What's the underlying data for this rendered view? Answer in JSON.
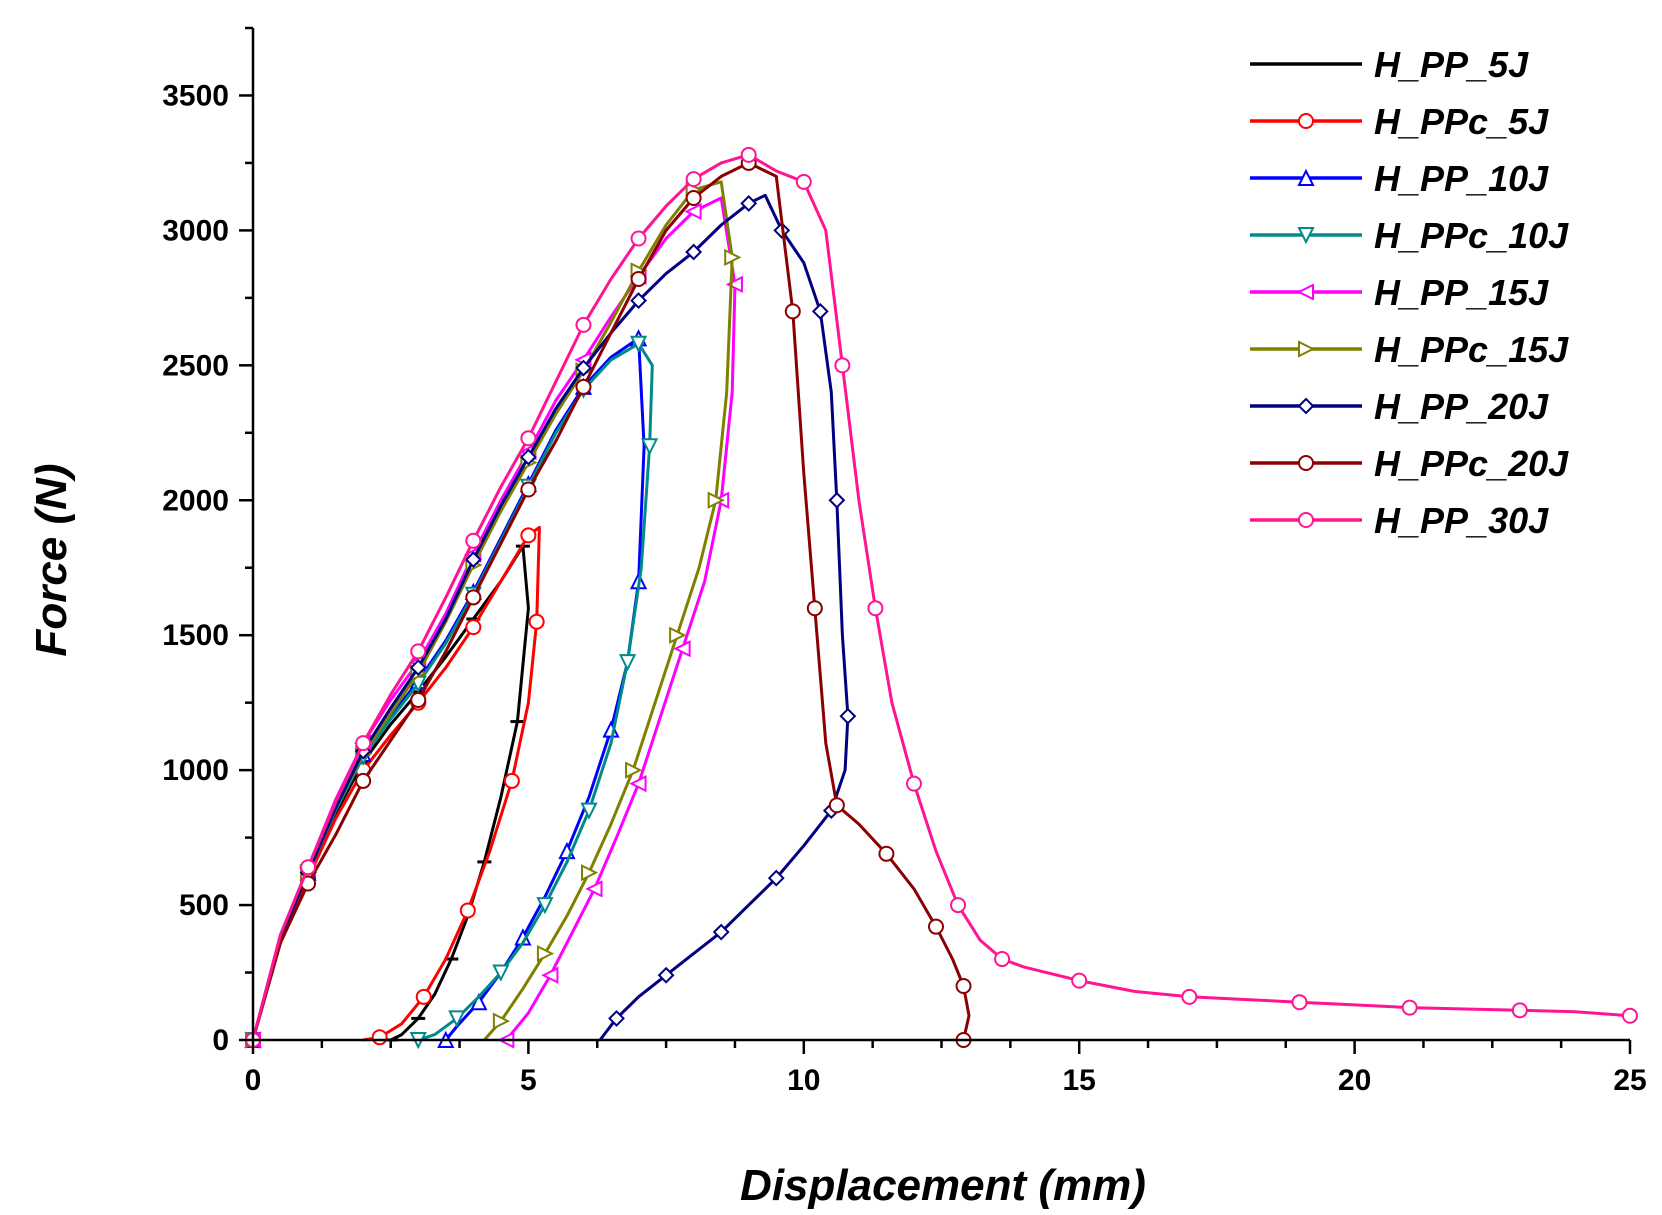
{
  "chart_data": {
    "type": "line",
    "title": "",
    "xlabel": "Displacement (mm)",
    "ylabel": "Force (N)",
    "xlim": [
      0,
      25
    ],
    "ylim": [
      0,
      3750
    ],
    "xticks": [
      0,
      5,
      10,
      15,
      20,
      25
    ],
    "yticks": [
      0,
      500,
      1000,
      1500,
      2000,
      2500,
      3000,
      3500
    ],
    "xtick_labels": [
      "0",
      "5",
      "10",
      "15",
      "20",
      "25"
    ],
    "ytick_labels": [
      "0",
      "500",
      "1000",
      "1500",
      "2000",
      "2500",
      "3000",
      "3500"
    ],
    "grid": false,
    "legend_position": "top-right",
    "series": [
      {
        "name": "H_PP_5J",
        "color": "#000000",
        "marker": "dash",
        "x": [
          0,
          0.5,
          1.0,
          1.5,
          2.0,
          2.5,
          3.0,
          3.5,
          4.0,
          4.5,
          4.9,
          5.0,
          4.8,
          4.5,
          4.2,
          3.9,
          3.6,
          3.3,
          3.0,
          2.7,
          2.5
        ],
        "y": [
          0,
          380,
          610,
          840,
          1030,
          1170,
          1290,
          1420,
          1560,
          1700,
          1830,
          1600,
          1180,
          900,
          660,
          460,
          300,
          170,
          80,
          20,
          0
        ]
      },
      {
        "name": "H_PPc_5J",
        "color": "#ff0000",
        "marker": "circle",
        "x": [
          0,
          0.5,
          1.0,
          1.5,
          2.0,
          2.5,
          3.0,
          3.5,
          4.0,
          4.5,
          5.0,
          5.2,
          5.15,
          5.0,
          4.7,
          4.3,
          3.9,
          3.5,
          3.1,
          2.7,
          2.3,
          2.0
        ],
        "y": [
          0,
          380,
          600,
          820,
          1000,
          1130,
          1250,
          1380,
          1530,
          1700,
          1870,
          1900,
          1550,
          1250,
          960,
          700,
          480,
          300,
          160,
          60,
          10,
          0
        ]
      },
      {
        "name": "H_PP_10J",
        "color": "#0000ff",
        "marker": "triangle-up",
        "x": [
          0,
          0.5,
          1.0,
          1.5,
          2.0,
          2.5,
          3.0,
          3.5,
          4.0,
          4.5,
          5.0,
          5.5,
          6.0,
          6.5,
          7.0,
          7.1,
          7.0,
          6.8,
          6.5,
          6.1,
          5.7,
          5.3,
          4.9,
          4.5,
          4.1,
          3.7,
          3.5
        ],
        "y": [
          0,
          380,
          620,
          860,
          1060,
          1200,
          1330,
          1480,
          1660,
          1860,
          2060,
          2260,
          2420,
          2530,
          2600,
          2200,
          1700,
          1400,
          1150,
          900,
          700,
          530,
          380,
          250,
          140,
          50,
          0
        ]
      },
      {
        "name": "H_PPc_10J",
        "color": "#008b8b",
        "marker": "triangle-down",
        "x": [
          0,
          0.5,
          1.0,
          1.5,
          2.0,
          2.5,
          3.0,
          3.5,
          4.0,
          4.5,
          5.0,
          5.5,
          6.0,
          6.5,
          7.0,
          7.25,
          7.2,
          7.05,
          6.8,
          6.5,
          6.1,
          5.7,
          5.3,
          4.9,
          4.5,
          4.1,
          3.7,
          3.3,
          3.0
        ],
        "y": [
          0,
          380,
          620,
          850,
          1050,
          1190,
          1320,
          1470,
          1650,
          1850,
          2050,
          2250,
          2410,
          2520,
          2580,
          2500,
          2200,
          1750,
          1400,
          1100,
          850,
          660,
          500,
          360,
          250,
          160,
          80,
          20,
          0
        ]
      },
      {
        "name": "H_PP_15J",
        "color": "#ff00ff",
        "marker": "triangle-left",
        "x": [
          0,
          0.5,
          1.0,
          1.5,
          2.0,
          2.5,
          3.0,
          3.5,
          4.0,
          4.5,
          5.0,
          5.5,
          6.0,
          6.5,
          7.0,
          7.5,
          8.0,
          8.5,
          8.75,
          8.7,
          8.5,
          8.2,
          7.8,
          7.4,
          7.0,
          6.6,
          6.2,
          5.8,
          5.4,
          5.0,
          4.6
        ],
        "y": [
          0,
          390,
          640,
          890,
          1100,
          1260,
          1400,
          1580,
          1800,
          2000,
          2180,
          2370,
          2520,
          2680,
          2830,
          2970,
          3070,
          3120,
          2800,
          2400,
          2000,
          1700,
          1450,
          1200,
          950,
          750,
          560,
          400,
          240,
          100,
          0
        ]
      },
      {
        "name": "H_PPc_15J",
        "color": "#808000",
        "marker": "triangle-right",
        "x": [
          0,
          0.5,
          1.0,
          1.5,
          2.0,
          2.5,
          3.0,
          3.5,
          4.0,
          4.5,
          5.0,
          5.5,
          6.0,
          6.5,
          7.0,
          7.5,
          8.0,
          8.5,
          8.7,
          8.6,
          8.4,
          8.1,
          7.7,
          7.3,
          6.9,
          6.5,
          6.1,
          5.7,
          5.3,
          4.9,
          4.5,
          4.2
        ],
        "y": [
          0,
          380,
          620,
          860,
          1060,
          1210,
          1360,
          1550,
          1760,
          1960,
          2140,
          2320,
          2480,
          2660,
          2850,
          3020,
          3150,
          3180,
          2900,
          2400,
          2000,
          1750,
          1500,
          1250,
          1000,
          800,
          620,
          460,
          320,
          190,
          70,
          0
        ]
      },
      {
        "name": "H_PP_20J",
        "color": "#000080",
        "marker": "diamond",
        "x": [
          0,
          0.5,
          1.0,
          1.5,
          2.0,
          2.5,
          3.0,
          3.5,
          4.0,
          4.5,
          5.0,
          5.5,
          6.0,
          6.5,
          7.0,
          7.5,
          8.0,
          8.5,
          9.0,
          9.3,
          9.6,
          10.0,
          10.3,
          10.5,
          10.6,
          10.7,
          10.8,
          10.75,
          10.5,
          10.0,
          9.5,
          9.0,
          8.5,
          8.0,
          7.5,
          7.0,
          6.6,
          6.3
        ],
        "y": [
          0,
          380,
          620,
          860,
          1070,
          1230,
          1380,
          1560,
          1780,
          1980,
          2160,
          2340,
          2490,
          2620,
          2740,
          2840,
          2920,
          3020,
          3100,
          3130,
          3000,
          2880,
          2700,
          2400,
          2000,
          1500,
          1200,
          1000,
          850,
          720,
          600,
          500,
          400,
          320,
          240,
          160,
          80,
          0
        ]
      },
      {
        "name": "H_PPc_20J",
        "color": "#8b0000",
        "marker": "circle",
        "x": [
          0,
          0.5,
          1.0,
          1.5,
          2.0,
          2.5,
          3.0,
          3.5,
          4.0,
          4.5,
          5.0,
          5.5,
          6.0,
          6.5,
          7.0,
          7.5,
          8.0,
          8.5,
          9.0,
          9.5,
          9.8,
          10.0,
          10.2,
          10.4,
          10.6,
          11.0,
          11.5,
          12.0,
          12.4,
          12.7,
          12.9,
          13.0,
          12.9
        ],
        "y": [
          0,
          360,
          580,
          760,
          960,
          1110,
          1260,
          1440,
          1640,
          1840,
          2040,
          2220,
          2420,
          2620,
          2820,
          3000,
          3120,
          3200,
          3250,
          3200,
          2700,
          2100,
          1600,
          1100,
          870,
          800,
          690,
          560,
          420,
          300,
          200,
          90,
          0
        ]
      },
      {
        "name": "H_PP_30J",
        "color": "#ff1493",
        "marker": "circle",
        "x": [
          0,
          0.5,
          1.0,
          1.5,
          2.0,
          2.5,
          3.0,
          3.5,
          4.0,
          4.5,
          5.0,
          5.5,
          6.0,
          6.5,
          7.0,
          7.5,
          8.0,
          8.5,
          9.0,
          9.5,
          10.0,
          10.4,
          10.7,
          11.0,
          11.3,
          11.6,
          12.0,
          12.4,
          12.8,
          13.2,
          13.6,
          14.0,
          15.0,
          16.0,
          17.0,
          18.0,
          19.0,
          20.0,
          21.0,
          22.0,
          23.0,
          24.0,
          25.0
        ],
        "y": [
          0,
          390,
          640,
          880,
          1100,
          1280,
          1440,
          1640,
          1850,
          2050,
          2230,
          2440,
          2650,
          2820,
          2970,
          3090,
          3190,
          3250,
          3280,
          3220,
          3180,
          3000,
          2500,
          2000,
          1600,
          1250,
          950,
          700,
          500,
          370,
          300,
          270,
          220,
          180,
          160,
          150,
          140,
          130,
          120,
          115,
          110,
          105,
          90
        ]
      }
    ]
  }
}
